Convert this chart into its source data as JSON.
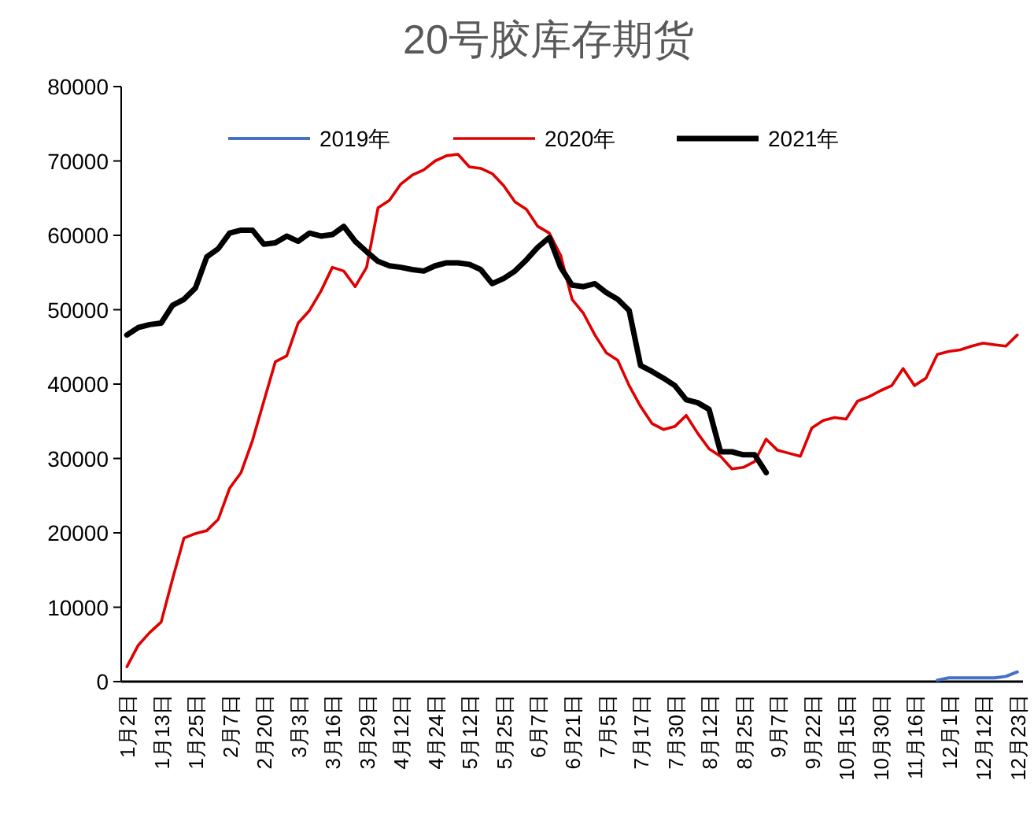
{
  "chart_data": {
    "type": "line",
    "title": "20号胶库存期货",
    "categories": [
      "1月2日",
      null,
      null,
      "1月13日",
      null,
      null,
      "1月25日",
      null,
      null,
      "2月7日",
      null,
      null,
      "2月20日",
      null,
      null,
      "3月3日",
      null,
      null,
      "3月16日",
      null,
      null,
      "3月29日",
      null,
      null,
      "4月12日",
      null,
      null,
      "4月24日",
      null,
      null,
      "5月12日",
      null,
      null,
      "5月25日",
      null,
      null,
      "6月7日",
      null,
      null,
      "6月21日",
      null,
      null,
      "7月5日",
      null,
      null,
      "7月17日",
      null,
      null,
      "7月30日",
      null,
      null,
      "8月12日",
      null,
      null,
      "8月25日",
      null,
      null,
      "9月7日",
      null,
      null,
      "9月22日",
      null,
      null,
      "10月15日",
      null,
      null,
      "10月30日",
      null,
      null,
      "11月16日",
      null,
      null,
      "12月1日",
      null,
      null,
      "12月12日",
      null,
      null,
      "12月23日"
    ],
    "series": [
      {
        "name": "2019年",
        "color": "#4472c4",
        "values": [
          null,
          null,
          null,
          null,
          null,
          null,
          null,
          null,
          null,
          null,
          null,
          null,
          null,
          null,
          null,
          null,
          null,
          null,
          null,
          null,
          null,
          null,
          null,
          null,
          null,
          null,
          null,
          null,
          null,
          null,
          null,
          null,
          null,
          null,
          null,
          null,
          null,
          null,
          null,
          null,
          null,
          null,
          null,
          null,
          null,
          null,
          null,
          null,
          null,
          null,
          null,
          null,
          null,
          null,
          null,
          null,
          null,
          null,
          null,
          null,
          null,
          null,
          null,
          null,
          null,
          null,
          null,
          null,
          null,
          null,
          null,
          200,
          500,
          500,
          500,
          500,
          500,
          700,
          1300
        ]
      },
      {
        "name": "2020年",
        "color": "#e00000",
        "values": [
          2000,
          4900,
          6600,
          8000,
          13800,
          19300,
          19900,
          20300,
          21800,
          26000,
          28100,
          32400,
          37700,
          43000,
          43800,
          48200,
          49900,
          52500,
          55700,
          55200,
          53100,
          55700,
          63700,
          64700,
          66900,
          68100,
          68800,
          70000,
          70700,
          70900,
          69200,
          69000,
          68300,
          66700,
          64500,
          63500,
          61200,
          60300,
          57300,
          51400,
          49500,
          46600,
          44200,
          43200,
          39800,
          37000,
          34700,
          33900,
          34300,
          35800,
          33400,
          31300,
          30300,
          28600,
          28800,
          29600,
          32600,
          31100,
          30700,
          30300,
          34100,
          35100,
          35500,
          35300,
          37700,
          38300,
          39100,
          39800,
          42100,
          39800,
          40800,
          44000,
          44400,
          44600,
          45100,
          45500,
          45300,
          45100,
          46600
        ]
      },
      {
        "name": "2021年",
        "color": "#000000",
        "values": [
          46600,
          47600,
          48000,
          48200,
          50600,
          51400,
          52900,
          57100,
          58200,
          60300,
          60700,
          60700,
          58800,
          59000,
          59900,
          59200,
          60300,
          59900,
          60100,
          61200,
          59200,
          57800,
          56500,
          55900,
          55700,
          55400,
          55200,
          55900,
          56300,
          56300,
          56100,
          55400,
          53500,
          54200,
          55200,
          56700,
          58400,
          59700,
          55700,
          53300,
          53100,
          53500,
          52300,
          51400,
          49900,
          42500,
          41700,
          40800,
          39800,
          37900,
          37500,
          36600,
          30900,
          30900,
          30500,
          30500,
          28100,
          null,
          null,
          null,
          null,
          null,
          null,
          null,
          null,
          null,
          null,
          null,
          null,
          null,
          null,
          null,
          null,
          null,
          null,
          null,
          null,
          null,
          null
        ]
      }
    ],
    "ylim": [
      0,
      80000
    ],
    "yticks": [
      0,
      10000,
      20000,
      30000,
      40000,
      50000,
      60000,
      70000,
      80000
    ],
    "legend": "top"
  }
}
